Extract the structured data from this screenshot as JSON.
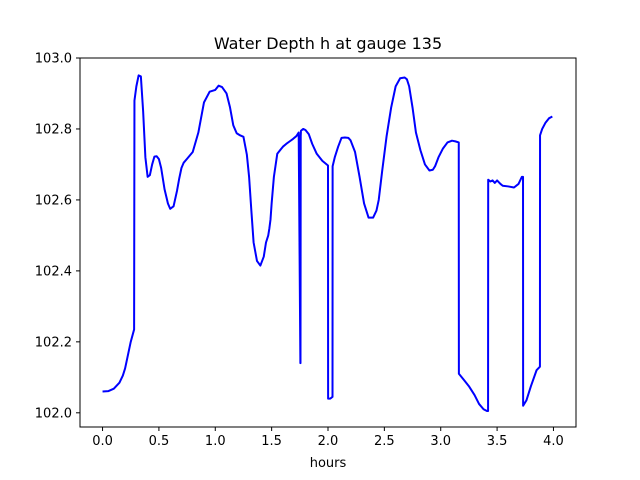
{
  "chart_data": {
    "type": "line",
    "title": "Water Depth h at gauge 135",
    "xlabel": "hours",
    "ylabel": "",
    "xlim": [
      -0.2,
      4.2
    ],
    "ylim": [
      101.96,
      103.0
    ],
    "xticks": [
      0.0,
      0.5,
      1.0,
      1.5,
      2.0,
      2.5,
      3.0,
      3.5,
      4.0
    ],
    "xtick_labels": [
      "0.0",
      "0.5",
      "1.0",
      "1.5",
      "2.0",
      "2.5",
      "3.0",
      "3.5",
      "4.0"
    ],
    "yticks": [
      102.0,
      102.2,
      102.4,
      102.6,
      102.8,
      103.0
    ],
    "ytick_labels": [
      "102.0",
      "102.2",
      "102.4",
      "102.6",
      "102.8",
      "103.0"
    ],
    "grid": false,
    "series": [
      {
        "color": "#0000ff",
        "x": [
          0.0,
          0.05,
          0.1,
          0.15,
          0.18,
          0.2,
          0.22,
          0.25,
          0.28,
          0.283,
          0.3,
          0.32,
          0.34,
          0.36,
          0.38,
          0.4,
          0.42,
          0.44,
          0.46,
          0.48,
          0.5,
          0.52,
          0.55,
          0.58,
          0.6,
          0.63,
          0.66,
          0.68,
          0.7,
          0.72,
          0.75,
          0.8,
          0.85,
          0.9,
          0.95,
          1.0,
          1.03,
          1.06,
          1.1,
          1.13,
          1.16,
          1.19,
          1.22,
          1.25,
          1.28,
          1.3,
          1.32,
          1.34,
          1.37,
          1.4,
          1.43,
          1.45,
          1.47,
          1.48,
          1.49,
          1.5,
          1.52,
          1.55,
          1.58,
          1.6,
          1.63,
          1.66,
          1.69,
          1.72,
          1.74,
          1.755,
          1.756,
          1.758,
          1.76,
          1.78,
          1.8,
          1.83,
          1.86,
          1.9,
          1.95,
          2.0,
          2.001,
          2.02,
          2.04,
          2.041,
          2.06,
          2.09,
          2.12,
          2.15,
          2.18,
          2.2,
          2.24,
          2.28,
          2.32,
          2.36,
          2.4,
          2.43,
          2.45,
          2.48,
          2.52,
          2.56,
          2.6,
          2.64,
          2.68,
          2.7,
          2.72,
          2.75,
          2.78,
          2.82,
          2.86,
          2.9,
          2.93,
          2.95,
          2.98,
          3.02,
          3.06,
          3.1,
          3.13,
          3.16,
          3.161,
          3.2,
          3.25,
          3.3,
          3.34,
          3.38,
          3.41,
          3.42,
          3.421,
          3.44,
          3.46,
          3.48,
          3.5,
          3.53,
          3.55,
          3.6,
          3.65,
          3.69,
          3.72,
          3.73,
          3.731,
          3.76,
          3.8,
          3.85,
          3.88,
          3.881,
          3.9,
          3.93,
          3.96,
          3.99
        ],
        "y": [
          102.06,
          102.061,
          102.068,
          102.085,
          102.105,
          102.125,
          102.155,
          102.2,
          102.235,
          102.88,
          102.92,
          102.951,
          102.948,
          102.85,
          102.72,
          102.665,
          102.67,
          102.7,
          102.722,
          102.723,
          102.715,
          102.69,
          102.63,
          102.59,
          102.575,
          102.582,
          102.625,
          102.66,
          102.69,
          102.705,
          102.716,
          102.735,
          102.79,
          102.875,
          102.905,
          102.91,
          102.922,
          102.918,
          102.9,
          102.862,
          102.81,
          102.788,
          102.782,
          102.778,
          102.728,
          102.665,
          102.57,
          102.48,
          102.428,
          102.415,
          102.44,
          102.48,
          102.5,
          102.52,
          102.545,
          102.59,
          102.665,
          102.73,
          102.742,
          102.75,
          102.758,
          102.765,
          102.772,
          102.78,
          102.79,
          102.14,
          102.14,
          102.78,
          102.795,
          102.8,
          102.797,
          102.785,
          102.758,
          102.73,
          102.71,
          102.697,
          102.04,
          102.04,
          102.045,
          102.695,
          102.72,
          102.75,
          102.775,
          102.776,
          102.775,
          102.768,
          102.735,
          102.665,
          102.59,
          102.55,
          102.55,
          102.57,
          102.6,
          102.68,
          102.78,
          102.86,
          102.92,
          102.943,
          102.945,
          102.94,
          102.92,
          102.86,
          102.79,
          102.74,
          102.7,
          102.683,
          102.685,
          102.695,
          102.72,
          102.745,
          102.762,
          102.767,
          102.765,
          102.762,
          102.11,
          102.095,
          102.075,
          102.05,
          102.025,
          102.01,
          102.005,
          102.005,
          102.657,
          102.652,
          102.655,
          102.648,
          102.655,
          102.645,
          102.64,
          102.638,
          102.635,
          102.645,
          102.665,
          102.665,
          102.02,
          102.035,
          102.075,
          102.12,
          102.13,
          102.782,
          102.8,
          102.818,
          102.83,
          102.835
        ]
      }
    ]
  }
}
